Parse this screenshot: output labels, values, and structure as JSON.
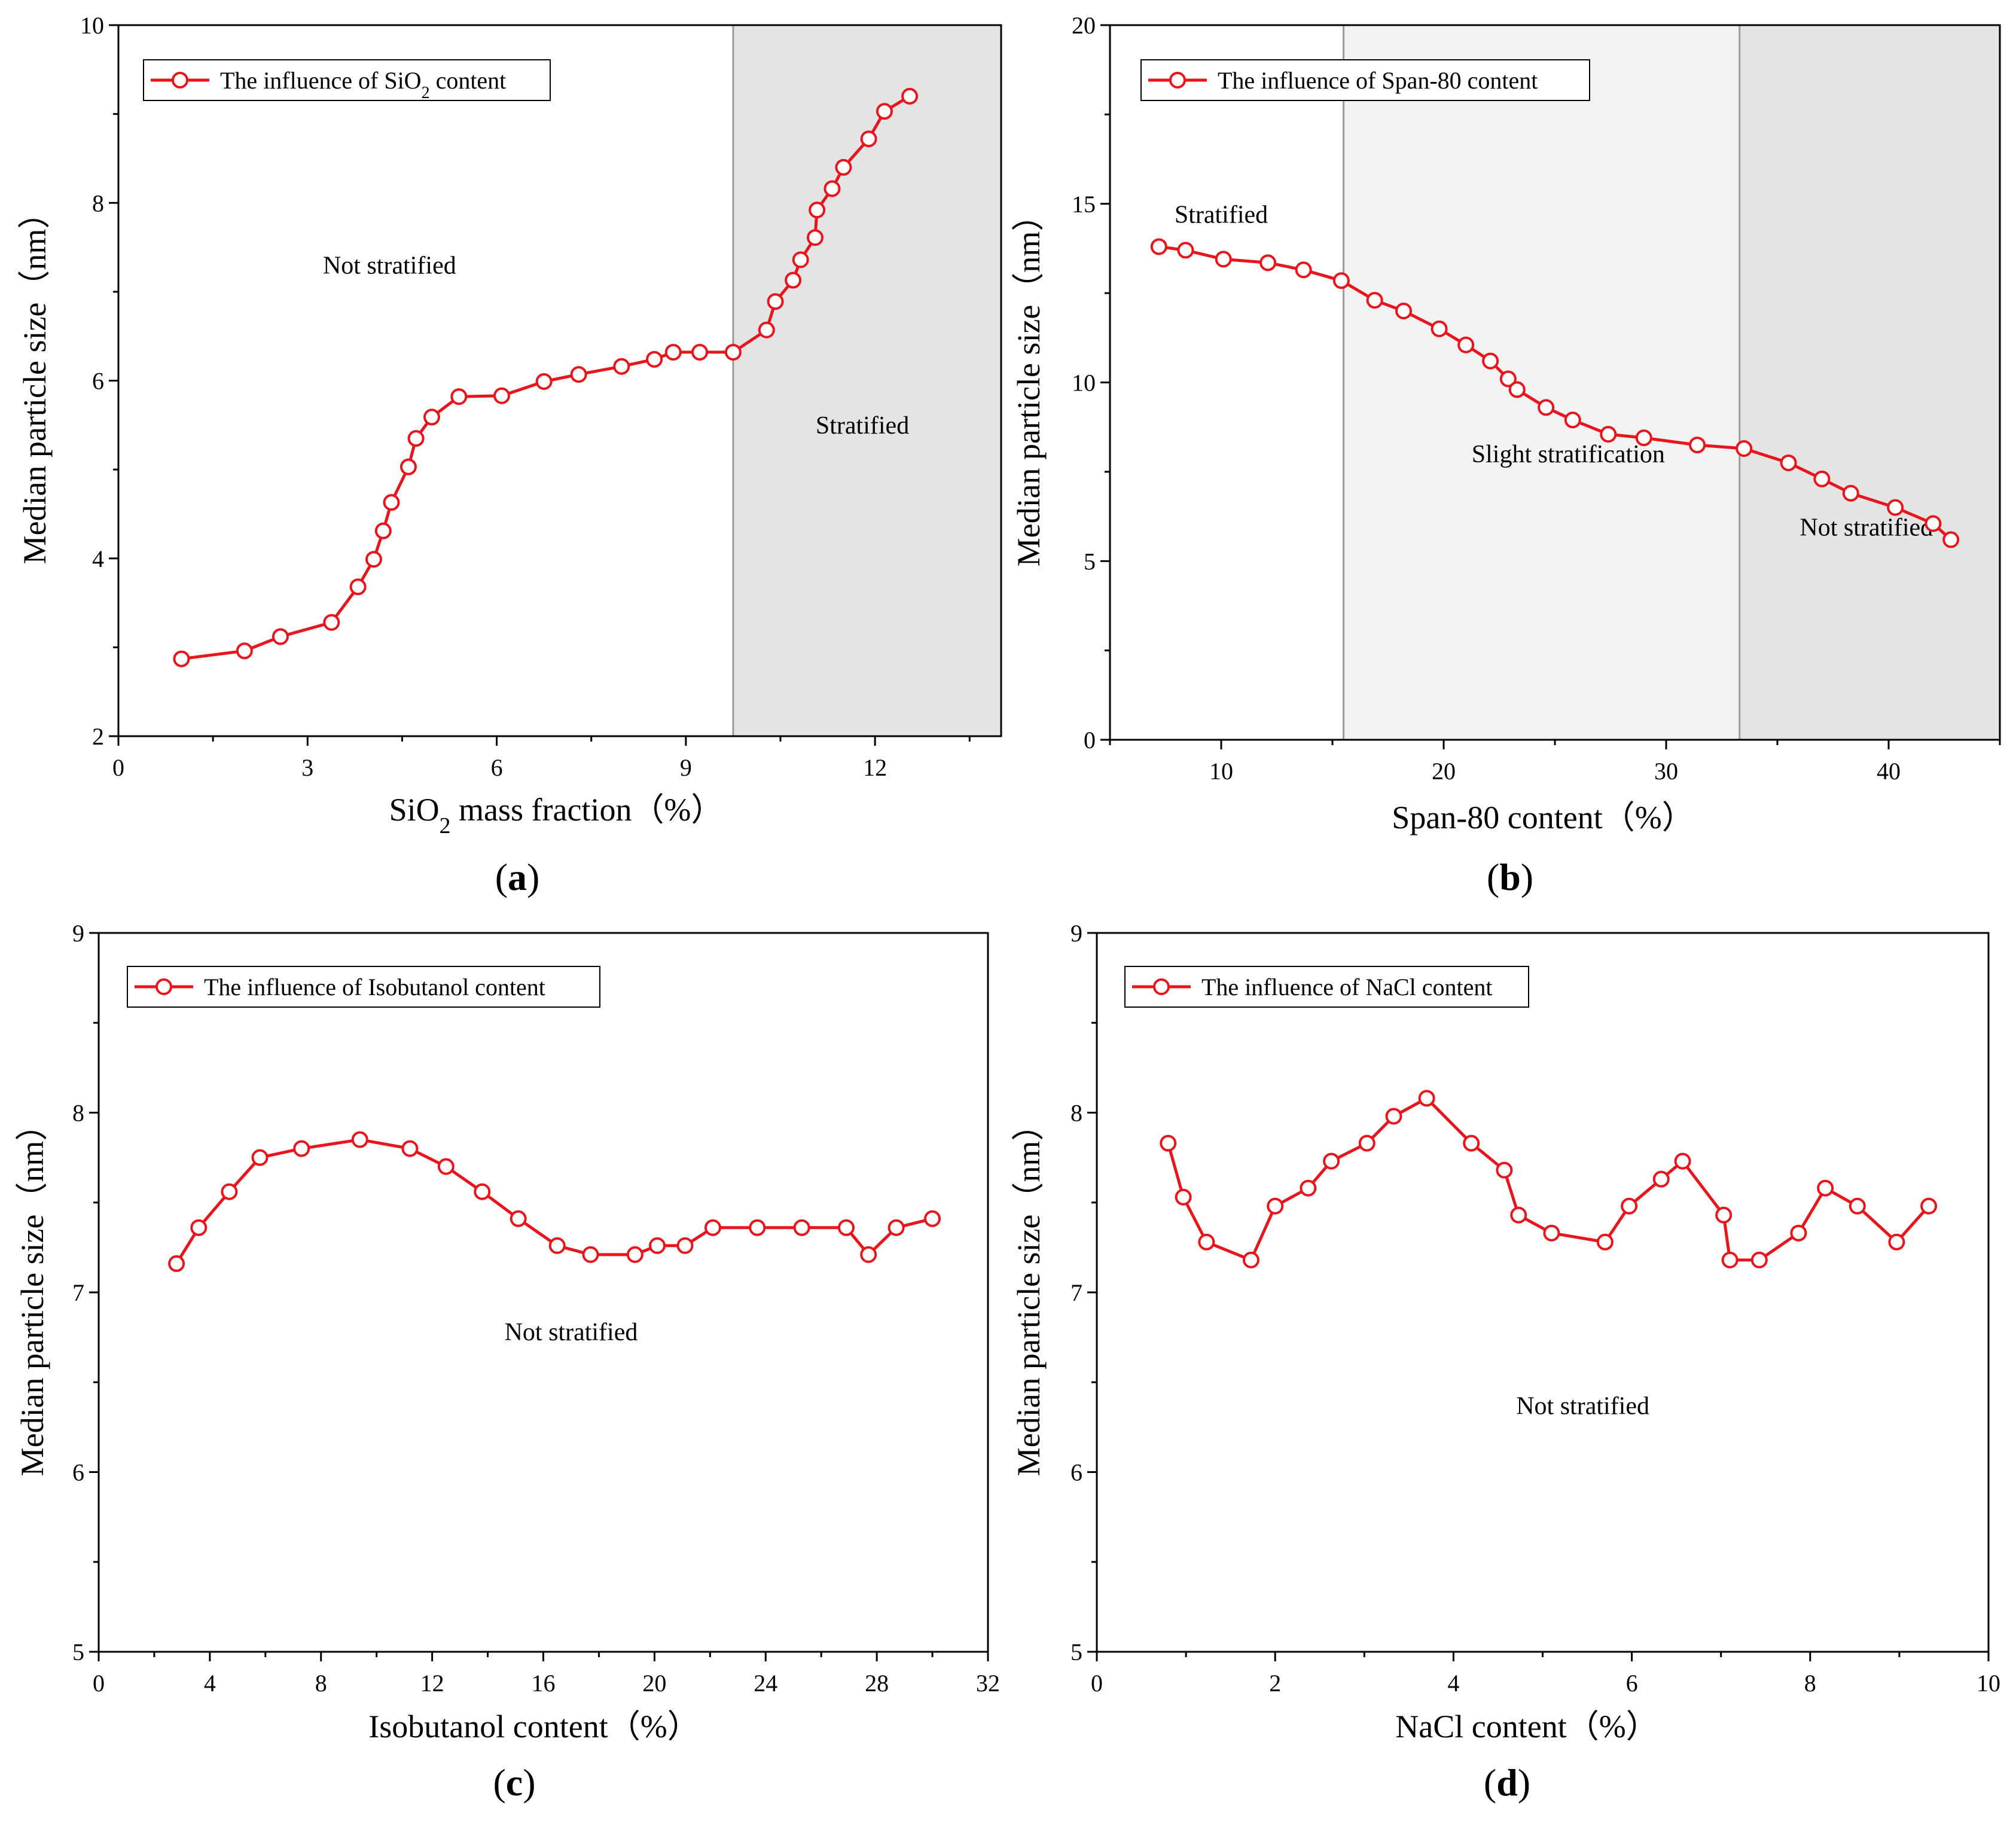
{
  "chart_data": [
    {
      "panel": "(a)",
      "type": "line",
      "xlabel": "SiO₂ mass fraction（%）",
      "ylabel": "Median particle size（nm）",
      "xlim": [
        0,
        14
      ],
      "ylim": [
        2,
        10
      ],
      "xticks": [
        0,
        3,
        6,
        9,
        12
      ],
      "yticks": [
        2,
        4,
        6,
        8,
        10
      ],
      "legend": "The influence of SiO₂ content",
      "legend_position": "top-left",
      "regions": [
        {
          "x0": 9.75,
          "x1": 14,
          "shade": "#e4e4e4",
          "label": "Stratified"
        }
      ],
      "annotations": [
        {
          "text": "Not stratified",
          "x": 4.3,
          "y": 7.3
        },
        {
          "text": "Stratified",
          "x": 11.8,
          "y": 5.5
        }
      ],
      "series": [
        {
          "name": "The influence of SiO₂ content",
          "x": [
            1.0,
            2.0,
            2.57,
            3.38,
            3.8,
            4.05,
            4.2,
            4.33,
            4.6,
            4.72,
            4.97,
            5.4,
            6.08,
            6.75,
            7.3,
            7.98,
            8.5,
            8.8,
            9.22,
            9.75,
            10.28,
            10.42,
            10.7,
            10.82,
            11.05,
            11.08,
            11.32,
            11.5,
            11.9,
            12.15,
            12.55
          ],
          "y": [
            2.87,
            2.96,
            3.12,
            3.28,
            3.68,
            3.99,
            4.31,
            4.63,
            5.03,
            5.35,
            5.59,
            5.82,
            5.83,
            5.99,
            6.07,
            6.16,
            6.24,
            6.32,
            6.32,
            6.32,
            6.57,
            6.89,
            7.13,
            7.36,
            7.61,
            7.92,
            8.16,
            8.4,
            8.72,
            9.03,
            9.2
          ]
        }
      ]
    },
    {
      "panel": "(b)",
      "type": "line",
      "xlabel": "Span-80 content（%）",
      "ylabel": "Median particle size（nm）",
      "xlim": [
        5,
        45
      ],
      "ylim": [
        0,
        20
      ],
      "xticks": [
        10,
        20,
        30,
        40
      ],
      "yticks": [
        0,
        5,
        10,
        15,
        20
      ],
      "legend": "The influence of Span-80 content",
      "legend_position": "top-left",
      "regions": [
        {
          "x0": 15.5,
          "x1": 33.3,
          "shade": "#f2f2f2",
          "label": "Slight stratification"
        },
        {
          "x0": 33.3,
          "x1": 45,
          "shade": "#e4e4e4",
          "label": "Not stratified"
        }
      ],
      "annotations": [
        {
          "text": "Stratified",
          "x": 10.0,
          "y": 14.7
        },
        {
          "text": "Slight stratification",
          "x": 25.6,
          "y": 8.0
        },
        {
          "text": "Not stratified",
          "x": 39.0,
          "y": 5.95
        }
      ],
      "series": [
        {
          "name": "The influence of Span-80 content",
          "x": [
            7.2,
            8.4,
            10.1,
            12.1,
            13.7,
            15.4,
            16.9,
            18.2,
            19.8,
            21.0,
            22.1,
            22.9,
            23.3,
            24.6,
            25.8,
            27.4,
            29.0,
            31.4,
            33.5,
            35.5,
            37.0,
            38.3,
            40.3,
            42.0,
            42.8
          ],
          "y": [
            13.8,
            13.7,
            13.45,
            13.35,
            13.15,
            12.85,
            12.3,
            12.0,
            11.5,
            11.05,
            10.6,
            10.1,
            9.8,
            9.3,
            8.95,
            8.55,
            8.45,
            8.25,
            8.15,
            7.75,
            7.3,
            6.9,
            6.5,
            6.05,
            5.6
          ]
        }
      ]
    },
    {
      "panel": "(c)",
      "type": "line",
      "xlabel": "Isobutanol content（%）",
      "ylabel": "Median particle size（nm）",
      "xlim": [
        0,
        32
      ],
      "ylim": [
        5,
        9
      ],
      "xticks": [
        0,
        4,
        8,
        12,
        16,
        20,
        24,
        28,
        32
      ],
      "yticks": [
        5,
        6,
        7,
        8,
        9
      ],
      "legend": "The influence of Isobutanol content",
      "legend_position": "top-left",
      "regions": [],
      "annotations": [
        {
          "text": "Not stratified",
          "x": 17.0,
          "y": 6.78
        }
      ],
      "series": [
        {
          "name": "The influence of Isobutanol content",
          "x": [
            2.8,
            3.6,
            4.7,
            5.8,
            7.3,
            9.4,
            11.2,
            12.5,
            13.8,
            15.1,
            16.5,
            17.7,
            19.3,
            20.1,
            21.1,
            22.1,
            23.7,
            25.3,
            26.9,
            27.7,
            28.7,
            30.0
          ],
          "y": [
            7.16,
            7.36,
            7.56,
            7.75,
            7.8,
            7.85,
            7.8,
            7.7,
            7.56,
            7.41,
            7.26,
            7.21,
            7.21,
            7.26,
            7.26,
            7.36,
            7.36,
            7.36,
            7.36,
            7.21,
            7.36,
            7.41
          ]
        }
      ]
    },
    {
      "panel": "(d)",
      "type": "line",
      "xlabel": "NaCl content（%）",
      "ylabel": "Median particle size（nm）",
      "xlim": [
        0,
        10
      ],
      "ylim": [
        5,
        9
      ],
      "xticks": [
        0,
        2,
        4,
        6,
        8,
        10
      ],
      "yticks": [
        5,
        6,
        7,
        8,
        9
      ],
      "legend": "The influence of NaCl content",
      "legend_position": "top-left",
      "regions": [],
      "annotations": [
        {
          "text": "Not stratified",
          "x": 5.45,
          "y": 6.37
        }
      ],
      "series": [
        {
          "name": "The influence of NaCl content",
          "x": [
            0.8,
            0.97,
            1.23,
            1.73,
            2.0,
            2.37,
            2.63,
            3.03,
            3.33,
            3.7,
            4.2,
            4.57,
            4.73,
            5.1,
            5.7,
            5.97,
            6.33,
            6.57,
            7.03,
            7.1,
            7.43,
            7.87,
            8.17,
            8.53,
            8.97,
            9.33
          ],
          "y": [
            7.83,
            7.53,
            7.28,
            7.18,
            7.48,
            7.58,
            7.73,
            7.83,
            7.98,
            8.08,
            7.83,
            7.68,
            7.43,
            7.33,
            7.28,
            7.48,
            7.63,
            7.73,
            7.43,
            7.18,
            7.18,
            7.33,
            7.58,
            7.48,
            7.28,
            7.48
          ]
        }
      ]
    }
  ],
  "style": {
    "series_color": "#e8161c",
    "frame_color": "#000000"
  }
}
